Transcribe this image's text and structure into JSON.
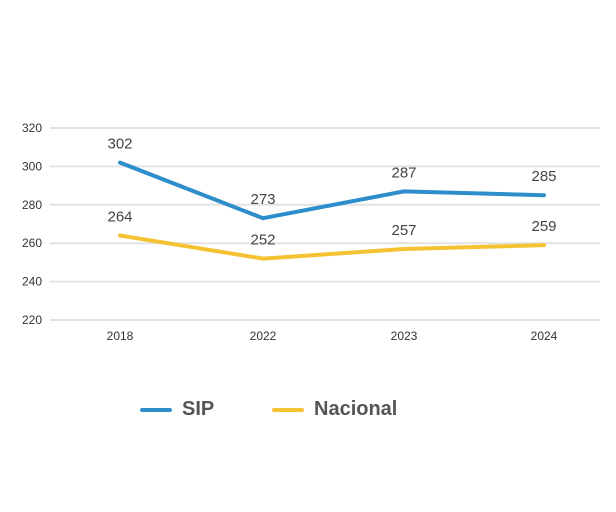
{
  "chart_data": {
    "type": "line",
    "title": "",
    "xlabel": "",
    "ylabel": "",
    "categories": [
      "2018",
      "2022",
      "2023",
      "2024"
    ],
    "ylim": [
      220,
      320
    ],
    "yticks": [
      220,
      240,
      260,
      280,
      300,
      320
    ],
    "grid": true,
    "legend_position": "bottom",
    "series": [
      {
        "name": "SIP",
        "values": [
          302,
          273,
          287,
          285
        ],
        "color": "#2E8ECB"
      },
      {
        "name": "Nacional",
        "values": [
          264,
          252,
          257,
          259
        ],
        "color": "#F5C232"
      }
    ]
  }
}
